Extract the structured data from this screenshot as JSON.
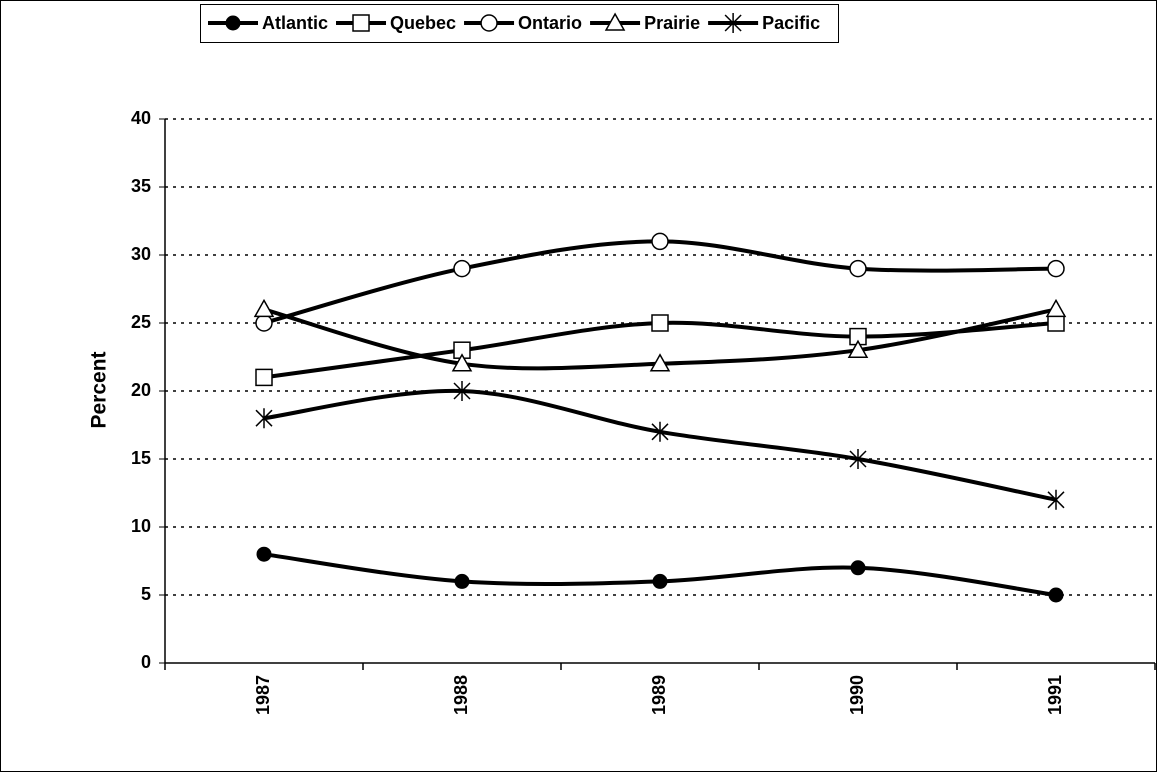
{
  "chart_data": {
    "type": "line",
    "y_label": "Percent",
    "categories": [
      "1987",
      "1988",
      "1989",
      "1990",
      "1991"
    ],
    "series": [
      {
        "name": "Atlantic",
        "color": "#000000",
        "marker": "filled-circle",
        "values": [
          8,
          6,
          6,
          7,
          5
        ]
      },
      {
        "name": "Quebec",
        "color": "#000000",
        "marker": "square",
        "values": [
          21,
          23,
          25,
          24,
          25
        ]
      },
      {
        "name": "Ontario",
        "color": "#000000",
        "marker": "circle",
        "values": [
          25,
          29,
          31,
          29,
          29
        ]
      },
      {
        "name": "Prairie",
        "color": "#000000",
        "marker": "triangle",
        "values": [
          26,
          22,
          22,
          23,
          26
        ]
      },
      {
        "name": "Pacific",
        "color": "#000000",
        "marker": "asterisk",
        "values": [
          18,
          20,
          17,
          15,
          12
        ]
      }
    ],
    "ylim": [
      0,
      40
    ],
    "yticks": [
      0,
      5,
      10,
      15,
      20,
      25,
      30,
      35,
      40
    ],
    "grid": true,
    "legend": "top",
    "smooth": true
  }
}
